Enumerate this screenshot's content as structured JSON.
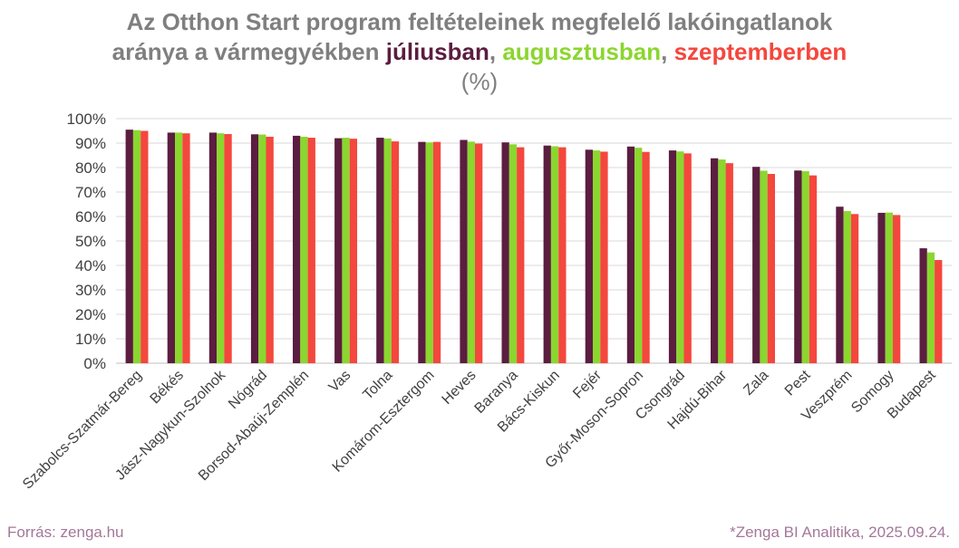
{
  "chart_data": {
    "type": "bar",
    "title": {
      "line1": "Az Otthon Start program feltételeinek megfelelő lakóingatlanok",
      "line2_prefix": "aránya a vármegyékben ",
      "sep1": ", ",
      "sep2": ", ",
      "unit": "(%)"
    },
    "xlabel": "",
    "ylabel": "",
    "ylim": [
      0,
      100
    ],
    "y_ticks": [
      "0%",
      "10%",
      "20%",
      "30%",
      "40%",
      "50%",
      "60%",
      "70%",
      "80%",
      "90%",
      "100%"
    ],
    "grid": true,
    "categories": [
      "Szabolcs-Szatmár-Bereg",
      "Békés",
      "Jász-Nagykun-Szolnok",
      "Nógrád",
      "Borsod-Abaúj-Zemplén",
      "Vas",
      "Tolna",
      "Komárom-Esztergom",
      "Heves",
      "Baranya",
      "Bács-Kiskun",
      "Fejér",
      "Győr-Moson-Sopron",
      "Csongrád",
      "Hajdú-Bihar",
      "Zala",
      "Pest",
      "Veszprém",
      "Somogy",
      "Budapest"
    ],
    "series": [
      {
        "name": "júliusban",
        "color": "#5b1d40",
        "values": [
          95.5,
          94.3,
          94.3,
          93.6,
          93.0,
          92.0,
          92.2,
          90.5,
          91.3,
          90.3,
          89.0,
          87.3,
          88.6,
          87.0,
          83.8,
          80.3,
          78.8,
          64.0,
          61.5,
          47.0
        ]
      },
      {
        "name": "augusztusban",
        "color": "#8bd62f",
        "values": [
          95.3,
          94.3,
          94.0,
          93.5,
          92.6,
          92.2,
          91.9,
          90.3,
          90.6,
          89.5,
          88.7,
          87.0,
          88.1,
          86.6,
          83.3,
          78.7,
          78.5,
          62.2,
          61.6,
          45.3
        ]
      },
      {
        "name": "szeptemberben",
        "color": "#f4473d",
        "values": [
          95.0,
          94.0,
          93.7,
          92.6,
          92.2,
          91.8,
          90.7,
          90.5,
          89.8,
          88.3,
          88.3,
          86.5,
          86.4,
          85.8,
          81.8,
          77.4,
          76.8,
          61.0,
          60.6,
          42.2
        ]
      }
    ]
  },
  "footer": {
    "source": "Forrás: zenga.hu",
    "credit": "*Zenga BI Analitika, 2025.09.24."
  }
}
